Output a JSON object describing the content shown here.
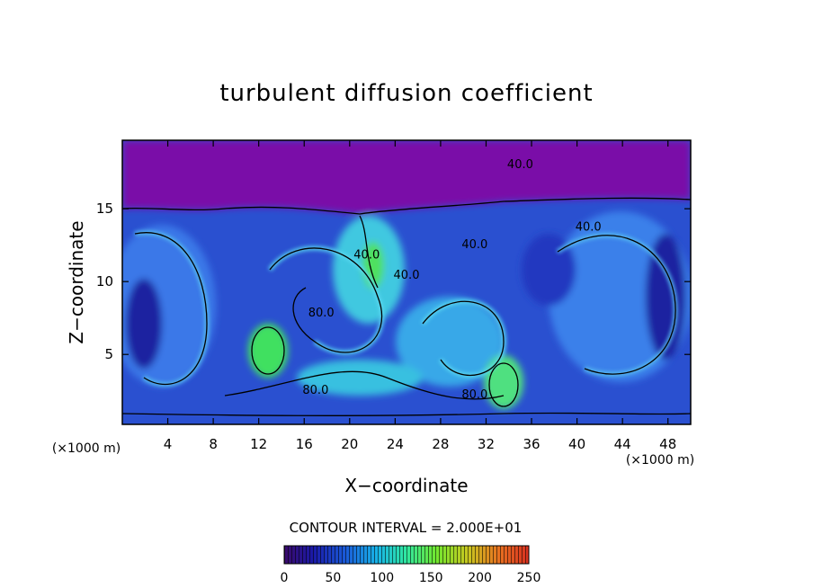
{
  "chart_data": {
    "type": "heatmap",
    "title": "turbulent diffusion coefficient",
    "xlabel": "X−coordinate",
    "ylabel": "Z−coordinate",
    "x_unit_left": "(×1000 m)",
    "x_unit_right": "(×1000 m)",
    "xlim": [
      0,
      50
    ],
    "ylim": [
      0.2,
      19.7
    ],
    "xticks": [
      4,
      8,
      12,
      16,
      20,
      24,
      28,
      32,
      36,
      40,
      44,
      48
    ],
    "yticks": [
      5,
      10,
      15
    ],
    "xtick_labels": [
      "4",
      "8",
      "12",
      "16",
      "20",
      "24",
      "28",
      "32",
      "36",
      "40",
      "44",
      "48"
    ],
    "ytick_labels": [
      "5",
      "10",
      "15"
    ],
    "contour_interval_text": "CONTOUR INTERVAL = 2.000E+01",
    "contour_labels": [
      {
        "text": "40.0",
        "x": 35.0,
        "z": 17.8
      },
      {
        "text": "40.0",
        "x": 41.0,
        "z": 13.5
      },
      {
        "text": "40.0",
        "x": 31.0,
        "z": 12.3
      },
      {
        "text": "40.0",
        "x": 25.0,
        "z": 10.2
      },
      {
        "text": "40.0",
        "x": 21.5,
        "z": 11.6
      },
      {
        "text": "80.0",
        "x": 17.5,
        "z": 7.6
      },
      {
        "text": "80.0",
        "x": 17.0,
        "z": 2.3
      },
      {
        "text": "80.0",
        "x": 31.0,
        "z": 2.0
      }
    ],
    "colorbar": {
      "min": 0,
      "max": 250,
      "tick_labels": [
        "0",
        "50",
        "100",
        "150",
        "200",
        "250"
      ],
      "colors": [
        "#3a0a6a",
        "#1a1aa8",
        "#1a5ad8",
        "#18b4e8",
        "#30e8a0",
        "#70e830",
        "#c8c820",
        "#e87020",
        "#d83020"
      ]
    },
    "field_colors": {
      "background_top": "#7a10a8",
      "low": "#2a2ac0",
      "mid": "#2a70e0",
      "high": "#30c8e8",
      "peak": "#40e060"
    }
  }
}
